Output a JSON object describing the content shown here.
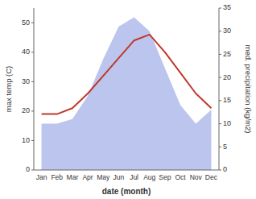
{
  "chart_data": {
    "type": "line",
    "categories": [
      "Jan",
      "Feb",
      "Mar",
      "Apr",
      "May",
      "Jun",
      "Jul",
      "Aug",
      "Sep",
      "Oct",
      "Nov",
      "Dec"
    ],
    "xlabel": "date (month)",
    "ylabel": "max temp (C)",
    "y2label": "med. precipitation (kg/m2)",
    "ylim": [
      0,
      55
    ],
    "yticks": [
      0,
      10,
      20,
      30,
      40,
      50
    ],
    "y2lim": [
      0,
      35
    ],
    "y2ticks": [
      0,
      5,
      10,
      15,
      20,
      25,
      30,
      35
    ],
    "series": [
      {
        "type": "area",
        "axis": "y2",
        "color": "#bbc5ee",
        "values": [
          10,
          10,
          11,
          16,
          24,
          31,
          33,
          30,
          22,
          14,
          10,
          13
        ]
      },
      {
        "type": "line",
        "color": "#c0392b",
        "values": [
          19,
          19,
          21,
          26,
          32,
          38,
          44,
          46,
          40,
          33,
          26,
          21
        ]
      }
    ]
  }
}
